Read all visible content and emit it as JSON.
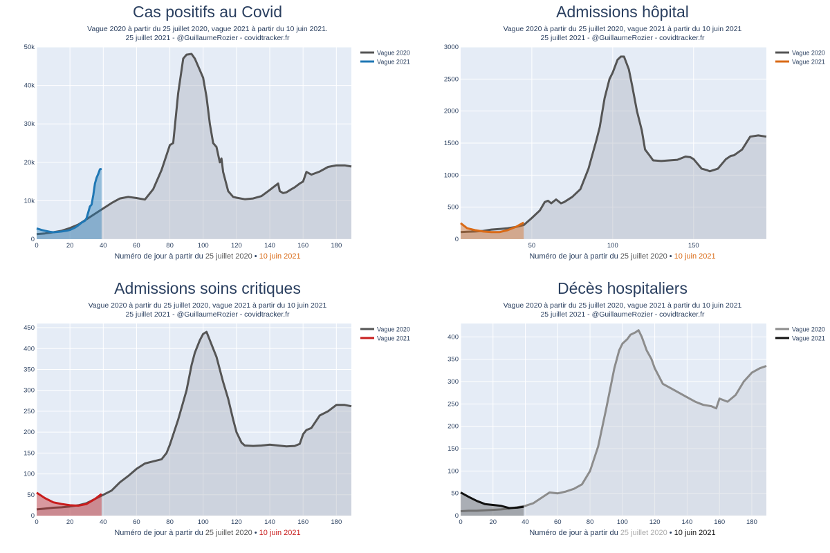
{
  "colors": {
    "plot_bg": "#e5ecf6",
    "grid": "#ffffff",
    "text": "#2a3f5f"
  },
  "chart_data": [
    {
      "type": "area",
      "title": "Cas positifs au Covid",
      "subtitle_line1": "Vague 2020 à partir du 25 juillet 2020, vague 2021 à partir du 10 juin 2021.",
      "subtitle_line2": "25 juillet 2021 - @GuillaumeRozier - covidtracker.fr",
      "xlabel_prefix": "Numéro de jour à partir du ",
      "xlabel_date2020": "25 juillet 2020",
      "xlabel_sep": " • ",
      "xlabel_date2021": "10 juin 2021",
      "xlim": [
        0,
        189
      ],
      "ylim": [
        0,
        50000
      ],
      "xticks": [
        0,
        20,
        40,
        60,
        80,
        100,
        120,
        140,
        160,
        180
      ],
      "yticks": [
        0,
        10000,
        20000,
        30000,
        40000,
        50000
      ],
      "ytick_labels": [
        "0",
        "10k",
        "20k",
        "30k",
        "40k",
        "50k"
      ],
      "series": [
        {
          "name": "Vague 2020",
          "color": "#555555",
          "fill": "rgba(170,176,188,0.40)",
          "x": [
            0,
            5,
            10,
            15,
            20,
            25,
            30,
            35,
            40,
            45,
            50,
            55,
            60,
            65,
            70,
            75,
            80,
            82,
            85,
            88,
            90,
            93,
            95,
            97,
            100,
            102,
            104,
            106,
            108,
            110,
            111,
            112,
            115,
            118,
            120,
            125,
            130,
            135,
            140,
            145,
            146,
            148,
            150,
            153,
            155,
            158,
            160,
            162,
            165,
            170,
            175,
            180,
            185,
            189
          ],
          "values": [
            1300,
            1500,
            1800,
            2200,
            2900,
            3800,
            5200,
            6600,
            8000,
            9400,
            10600,
            11000,
            10700,
            10300,
            13000,
            18000,
            24500,
            25000,
            38000,
            47000,
            48000,
            48200,
            47000,
            45000,
            42000,
            37000,
            30000,
            25000,
            24000,
            20000,
            21000,
            17500,
            12500,
            11000,
            10800,
            10400,
            10600,
            11200,
            12800,
            14500,
            12500,
            12000,
            12200,
            13000,
            13500,
            14500,
            15000,
            17500,
            16800,
            17600,
            18800,
            19200,
            19200,
            18900
          ]
        },
        {
          "name": "Vague 2021",
          "color": "#1f77b4",
          "fill": "rgba(31,119,180,0.40)",
          "x": [
            0,
            3,
            5,
            8,
            10,
            13,
            15,
            18,
            20,
            23,
            25,
            27,
            29,
            30,
            31,
            32,
            33,
            34,
            35,
            36,
            37,
            38,
            39
          ],
          "values": [
            2800,
            2400,
            2200,
            1900,
            1800,
            1900,
            2000,
            2200,
            2400,
            3000,
            3600,
            4300,
            4800,
            5500,
            7000,
            8500,
            9000,
            11500,
            14500,
            16000,
            17000,
            18200,
            18300
          ]
        }
      ],
      "legend_position": "top-right",
      "grid": true
    },
    {
      "type": "area",
      "title": "Admissions hôpital",
      "subtitle_line1": "Vague 2020 à partir du 25 juillet 2020, vague 2021 à partir du 10 juin 2021",
      "subtitle_line2": "25 juillet 2021 - @GuillaumeRozier - covidtracker.fr",
      "xlabel_prefix": "Numéro de jour à partir du ",
      "xlabel_date2020": "25 juillet 2020",
      "xlabel_sep": " • ",
      "xlabel_date2021": "10 juin 2021",
      "xlim": [
        6,
        195
      ],
      "ylim": [
        0,
        3000
      ],
      "xticks": [
        50,
        100,
        150
      ],
      "yticks": [
        0,
        500,
        1000,
        1500,
        2000,
        2500,
        3000
      ],
      "ytick_labels": [
        "0",
        "500",
        "1000",
        "1500",
        "2000",
        "2500",
        "3000"
      ],
      "series": [
        {
          "name": "Vague 2020",
          "color": "#555555",
          "fill": "rgba(170,176,188,0.40)",
          "x": [
            6,
            10,
            15,
            20,
            25,
            30,
            35,
            40,
            45,
            50,
            55,
            58,
            60,
            62,
            65,
            68,
            70,
            75,
            80,
            85,
            90,
            92,
            95,
            98,
            100,
            103,
            105,
            107,
            110,
            112,
            115,
            118,
            120,
            123,
            125,
            130,
            135,
            140,
            145,
            148,
            150,
            155,
            158,
            160,
            165,
            170,
            173,
            175,
            180,
            185,
            190,
            195
          ],
          "values": [
            110,
            115,
            120,
            130,
            150,
            160,
            170,
            190,
            220,
            330,
            450,
            580,
            600,
            560,
            620,
            560,
            580,
            660,
            780,
            1100,
            1550,
            1750,
            2200,
            2500,
            2600,
            2800,
            2850,
            2850,
            2650,
            2400,
            2000,
            1700,
            1400,
            1300,
            1230,
            1220,
            1230,
            1240,
            1290,
            1280,
            1250,
            1100,
            1080,
            1060,
            1100,
            1250,
            1300,
            1310,
            1400,
            1600,
            1620,
            1600
          ]
        },
        {
          "name": "Vague 2021",
          "color": "#d96a16",
          "fill": "rgba(217,106,22,0.40)",
          "x": [
            6,
            10,
            15,
            20,
            25,
            30,
            35,
            40,
            45
          ],
          "values": [
            250,
            170,
            140,
            120,
            110,
            110,
            140,
            190,
            260
          ]
        }
      ],
      "legend_position": "top-right",
      "grid": true
    },
    {
      "type": "area",
      "title": "Admissions soins critiques",
      "subtitle_line1": "Vague 2020 à partir du 25 juillet 2020, vague 2021 à partir du 10 juin 2021",
      "subtitle_line2": "25 juillet 2021 - @GuillaumeRozier - covidtracker.fr",
      "xlabel_prefix": "Numéro de jour à partir du ",
      "xlabel_date2020": "25 juillet 2020",
      "xlabel_sep": " • ",
      "xlabel_date2021": "10 juin 2021",
      "xlim": [
        0,
        189
      ],
      "ylim": [
        0,
        460
      ],
      "xticks": [
        0,
        20,
        40,
        60,
        80,
        100,
        120,
        140,
        160,
        180
      ],
      "yticks": [
        0,
        50,
        100,
        150,
        200,
        250,
        300,
        350,
        400,
        450
      ],
      "ytick_labels": [
        "0",
        "50",
        "100",
        "150",
        "200",
        "250",
        "300",
        "350",
        "400",
        "450"
      ],
      "series": [
        {
          "name": "Vague 2020",
          "color": "#555555",
          "fill": "rgba(170,176,188,0.40)",
          "x": [
            0,
            5,
            10,
            15,
            20,
            25,
            30,
            35,
            40,
            45,
            50,
            55,
            60,
            65,
            70,
            75,
            78,
            80,
            85,
            90,
            93,
            95,
            98,
            100,
            102,
            104,
            106,
            108,
            110,
            112,
            115,
            118,
            120,
            123,
            125,
            130,
            135,
            140,
            145,
            150,
            155,
            158,
            160,
            162,
            165,
            170,
            175,
            180,
            185,
            189
          ],
          "values": [
            15,
            17,
            19,
            20,
            22,
            25,
            30,
            40,
            50,
            60,
            80,
            95,
            112,
            125,
            130,
            135,
            150,
            170,
            230,
            300,
            360,
            390,
            420,
            435,
            440,
            420,
            400,
            380,
            350,
            320,
            280,
            230,
            200,
            175,
            168,
            167,
            168,
            170,
            168,
            166,
            167,
            172,
            195,
            205,
            210,
            240,
            250,
            265,
            265,
            262
          ]
        },
        {
          "name": "Vague 2021",
          "color": "#c81d1d",
          "fill": "rgba(200,29,29,0.40)",
          "x": [
            0,
            5,
            10,
            15,
            20,
            25,
            30,
            35,
            39
          ],
          "values": [
            55,
            42,
            32,
            28,
            25,
            24,
            28,
            40,
            52
          ]
        }
      ],
      "legend_position": "top-right",
      "grid": true
    },
    {
      "type": "area",
      "title": "Décès hospitaliers",
      "subtitle_line1": "Vague 2020 à partir du 25 juillet 2020, vague 2021 à partir du 10 juin 2021",
      "subtitle_line2": "25 juillet 2021 - @GuillaumeRozier - covidtracker.fr",
      "xlabel_prefix": "Numéro de jour à partir du ",
      "xlabel_date2020": "25 juillet 2020",
      "xlabel_sep": " • ",
      "xlabel_date2021": "10 juin 2021",
      "xlim": [
        0,
        189
      ],
      "ylim": [
        0,
        430
      ],
      "xticks": [
        0,
        20,
        40,
        60,
        80,
        100,
        120,
        140,
        160,
        180
      ],
      "yticks": [
        0,
        50,
        100,
        150,
        200,
        250,
        300,
        350,
        400
      ],
      "ytick_labels": [
        "0",
        "50",
        "100",
        "150",
        "200",
        "250",
        "300",
        "350",
        "400"
      ],
      "series": [
        {
          "name": "Vague 2020",
          "color": "#8c8c8c",
          "fill": "rgba(200,205,215,0.40)",
          "x": [
            0,
            5,
            10,
            15,
            20,
            25,
            30,
            35,
            40,
            45,
            50,
            55,
            60,
            65,
            70,
            75,
            80,
            85,
            90,
            95,
            98,
            100,
            103,
            105,
            108,
            110,
            112,
            115,
            118,
            120,
            125,
            130,
            135,
            140,
            145,
            150,
            155,
            158,
            160,
            165,
            170,
            175,
            180,
            185,
            189
          ],
          "values": [
            10,
            11,
            11,
            12,
            13,
            14,
            16,
            19,
            22,
            28,
            40,
            52,
            50,
            54,
            60,
            70,
            100,
            155,
            240,
            330,
            370,
            385,
            395,
            405,
            410,
            415,
            400,
            370,
            350,
            330,
            295,
            285,
            275,
            265,
            255,
            248,
            245,
            240,
            262,
            255,
            270,
            300,
            320,
            330,
            335
          ]
        },
        {
          "name": "Vague 2021",
          "color": "#111111",
          "fill": "rgba(60,60,60,0.35)",
          "x": [
            0,
            5,
            10,
            15,
            20,
            25,
            30,
            35,
            39
          ],
          "values": [
            52,
            42,
            33,
            26,
            24,
            22,
            17,
            18,
            20
          ]
        }
      ],
      "legend_position": "top-right",
      "grid": true
    }
  ]
}
